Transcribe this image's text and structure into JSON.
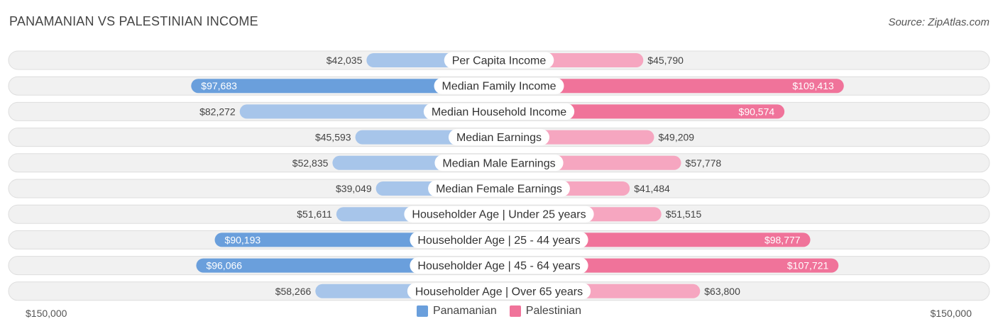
{
  "header": {
    "title": "PANAMANIAN VS PALESTINIAN INCOME",
    "source": "Source: ZipAtlas.com"
  },
  "colors": {
    "panamanian_strong": "#6a9fdc",
    "panamanian_light": "#a7c5ea",
    "palestinian_strong": "#f0739a",
    "palestinian_light": "#f6a6c0",
    "row_bg": "#f1f1f1",
    "row_border": "#dedede"
  },
  "chart_data": {
    "type": "bar",
    "orientation": "diverging-horizontal",
    "title": "PANAMANIAN VS PALESTINIAN INCOME",
    "categories": [
      "Per Capita Income",
      "Median Family Income",
      "Median Household Income",
      "Median Earnings",
      "Median Male Earnings",
      "Median Female Earnings",
      "Householder Age | Under 25 years",
      "Householder Age | 25 - 44 years",
      "Householder Age | 45 - 64 years",
      "Householder Age | Over 65 years"
    ],
    "series": [
      {
        "name": "Panamanian",
        "side": "left",
        "values": [
          42035,
          97683,
          82272,
          45593,
          52835,
          39049,
          51611,
          90193,
          96066,
          58266
        ],
        "labels": [
          "$42,035",
          "$97,683",
          "$82,272",
          "$45,593",
          "$52,835",
          "$39,049",
          "$51,611",
          "$90,193",
          "$96,066",
          "$58,266"
        ]
      },
      {
        "name": "Palestinian",
        "side": "right",
        "values": [
          45790,
          109413,
          90574,
          49209,
          57778,
          41484,
          51515,
          98777,
          107721,
          63800
        ],
        "labels": [
          "$45,790",
          "$109,413",
          "$90,574",
          "$49,209",
          "$57,778",
          "$41,484",
          "$51,515",
          "$98,777",
          "$107,721",
          "$63,800"
        ]
      }
    ],
    "xlim": [
      0,
      150000
    ],
    "axis_labels": {
      "left": "$150,000",
      "right": "$150,000"
    },
    "strong_threshold": 85000,
    "legend_position": "bottom-center"
  },
  "legend": {
    "items": [
      {
        "label": "Panamanian"
      },
      {
        "label": "Palestinian"
      }
    ]
  }
}
